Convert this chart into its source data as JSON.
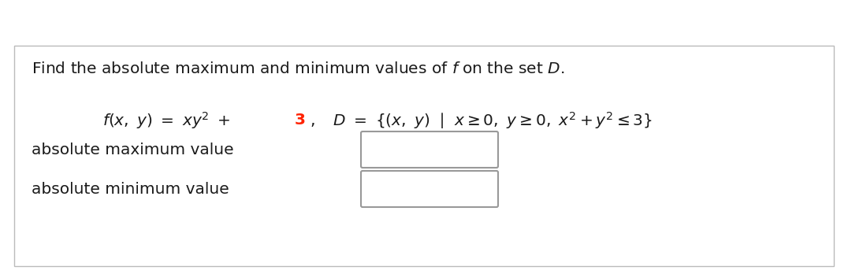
{
  "bg_color": "#ffffff",
  "outer_bg": "#ffffff",
  "border_color": "#bbbbbb",
  "text_color": "#1a1a1a",
  "red_color": "#ff2200",
  "box_edge_color": "#999999",
  "title_fontsize": 14.5,
  "formula_fontsize": 14.5,
  "label_fontsize": 14.5,
  "label_max": "absolute maximum value",
  "label_min": "absolute minimum value"
}
